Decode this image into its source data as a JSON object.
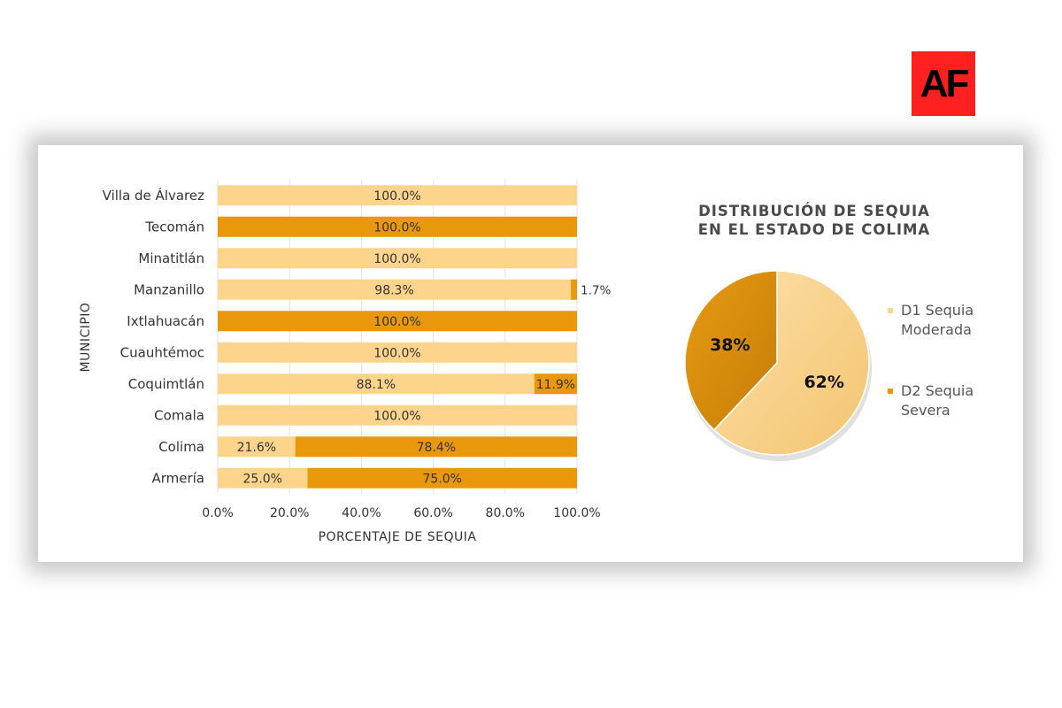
{
  "logo": {
    "text": "AF",
    "color": "#ff2020"
  },
  "colors": {
    "d1": "#fdd48c",
    "d2": "#e8980a",
    "text": "#333333"
  },
  "chart_data": [
    {
      "type": "bar",
      "orientation": "horizontal",
      "stacked": true,
      "categories": [
        "Villa de Álvarez",
        "Tecomán",
        "Minatitlán",
        "Manzanillo",
        "Ixtlahuacán",
        "Cuauhtémoc",
        "Coquimtlán",
        "Comala",
        "Colima",
        "Armería"
      ],
      "series": [
        {
          "values": [
            100.0,
            0,
            100.0,
            98.3,
            0,
            100.0,
            88.1,
            100.0,
            21.6,
            25.0
          ],
          "color": "#fdd48c"
        },
        {
          "values": [
            0,
            100.0,
            0,
            1.7,
            100.0,
            0,
            11.9,
            0,
            78.4,
            75.0
          ],
          "color": "#e8980a"
        }
      ],
      "xlabel": "PORCENTAJE DE SEQUIA",
      "ylabel": "MUNICIPIO",
      "xlim": [
        0,
        100
      ],
      "xticks": [
        "0.0%",
        "20.0%",
        "40.0%",
        "60.0%",
        "80.0%",
        "100.0%"
      ],
      "grid": true
    },
    {
      "type": "pie",
      "title_lines": [
        "DISTRIBUCIÓN DE SEQUIA",
        "EN EL ESTADO DE COLIMA"
      ],
      "slices": [
        {
          "label": "D1 Sequia Moderada",
          "value": 62,
          "text": "62%",
          "color": "#fdd48c"
        },
        {
          "label": "D2 Sequia Severa",
          "value": 38,
          "text": "38%",
          "color": "#e8980a"
        }
      ],
      "legend": "right"
    }
  ]
}
